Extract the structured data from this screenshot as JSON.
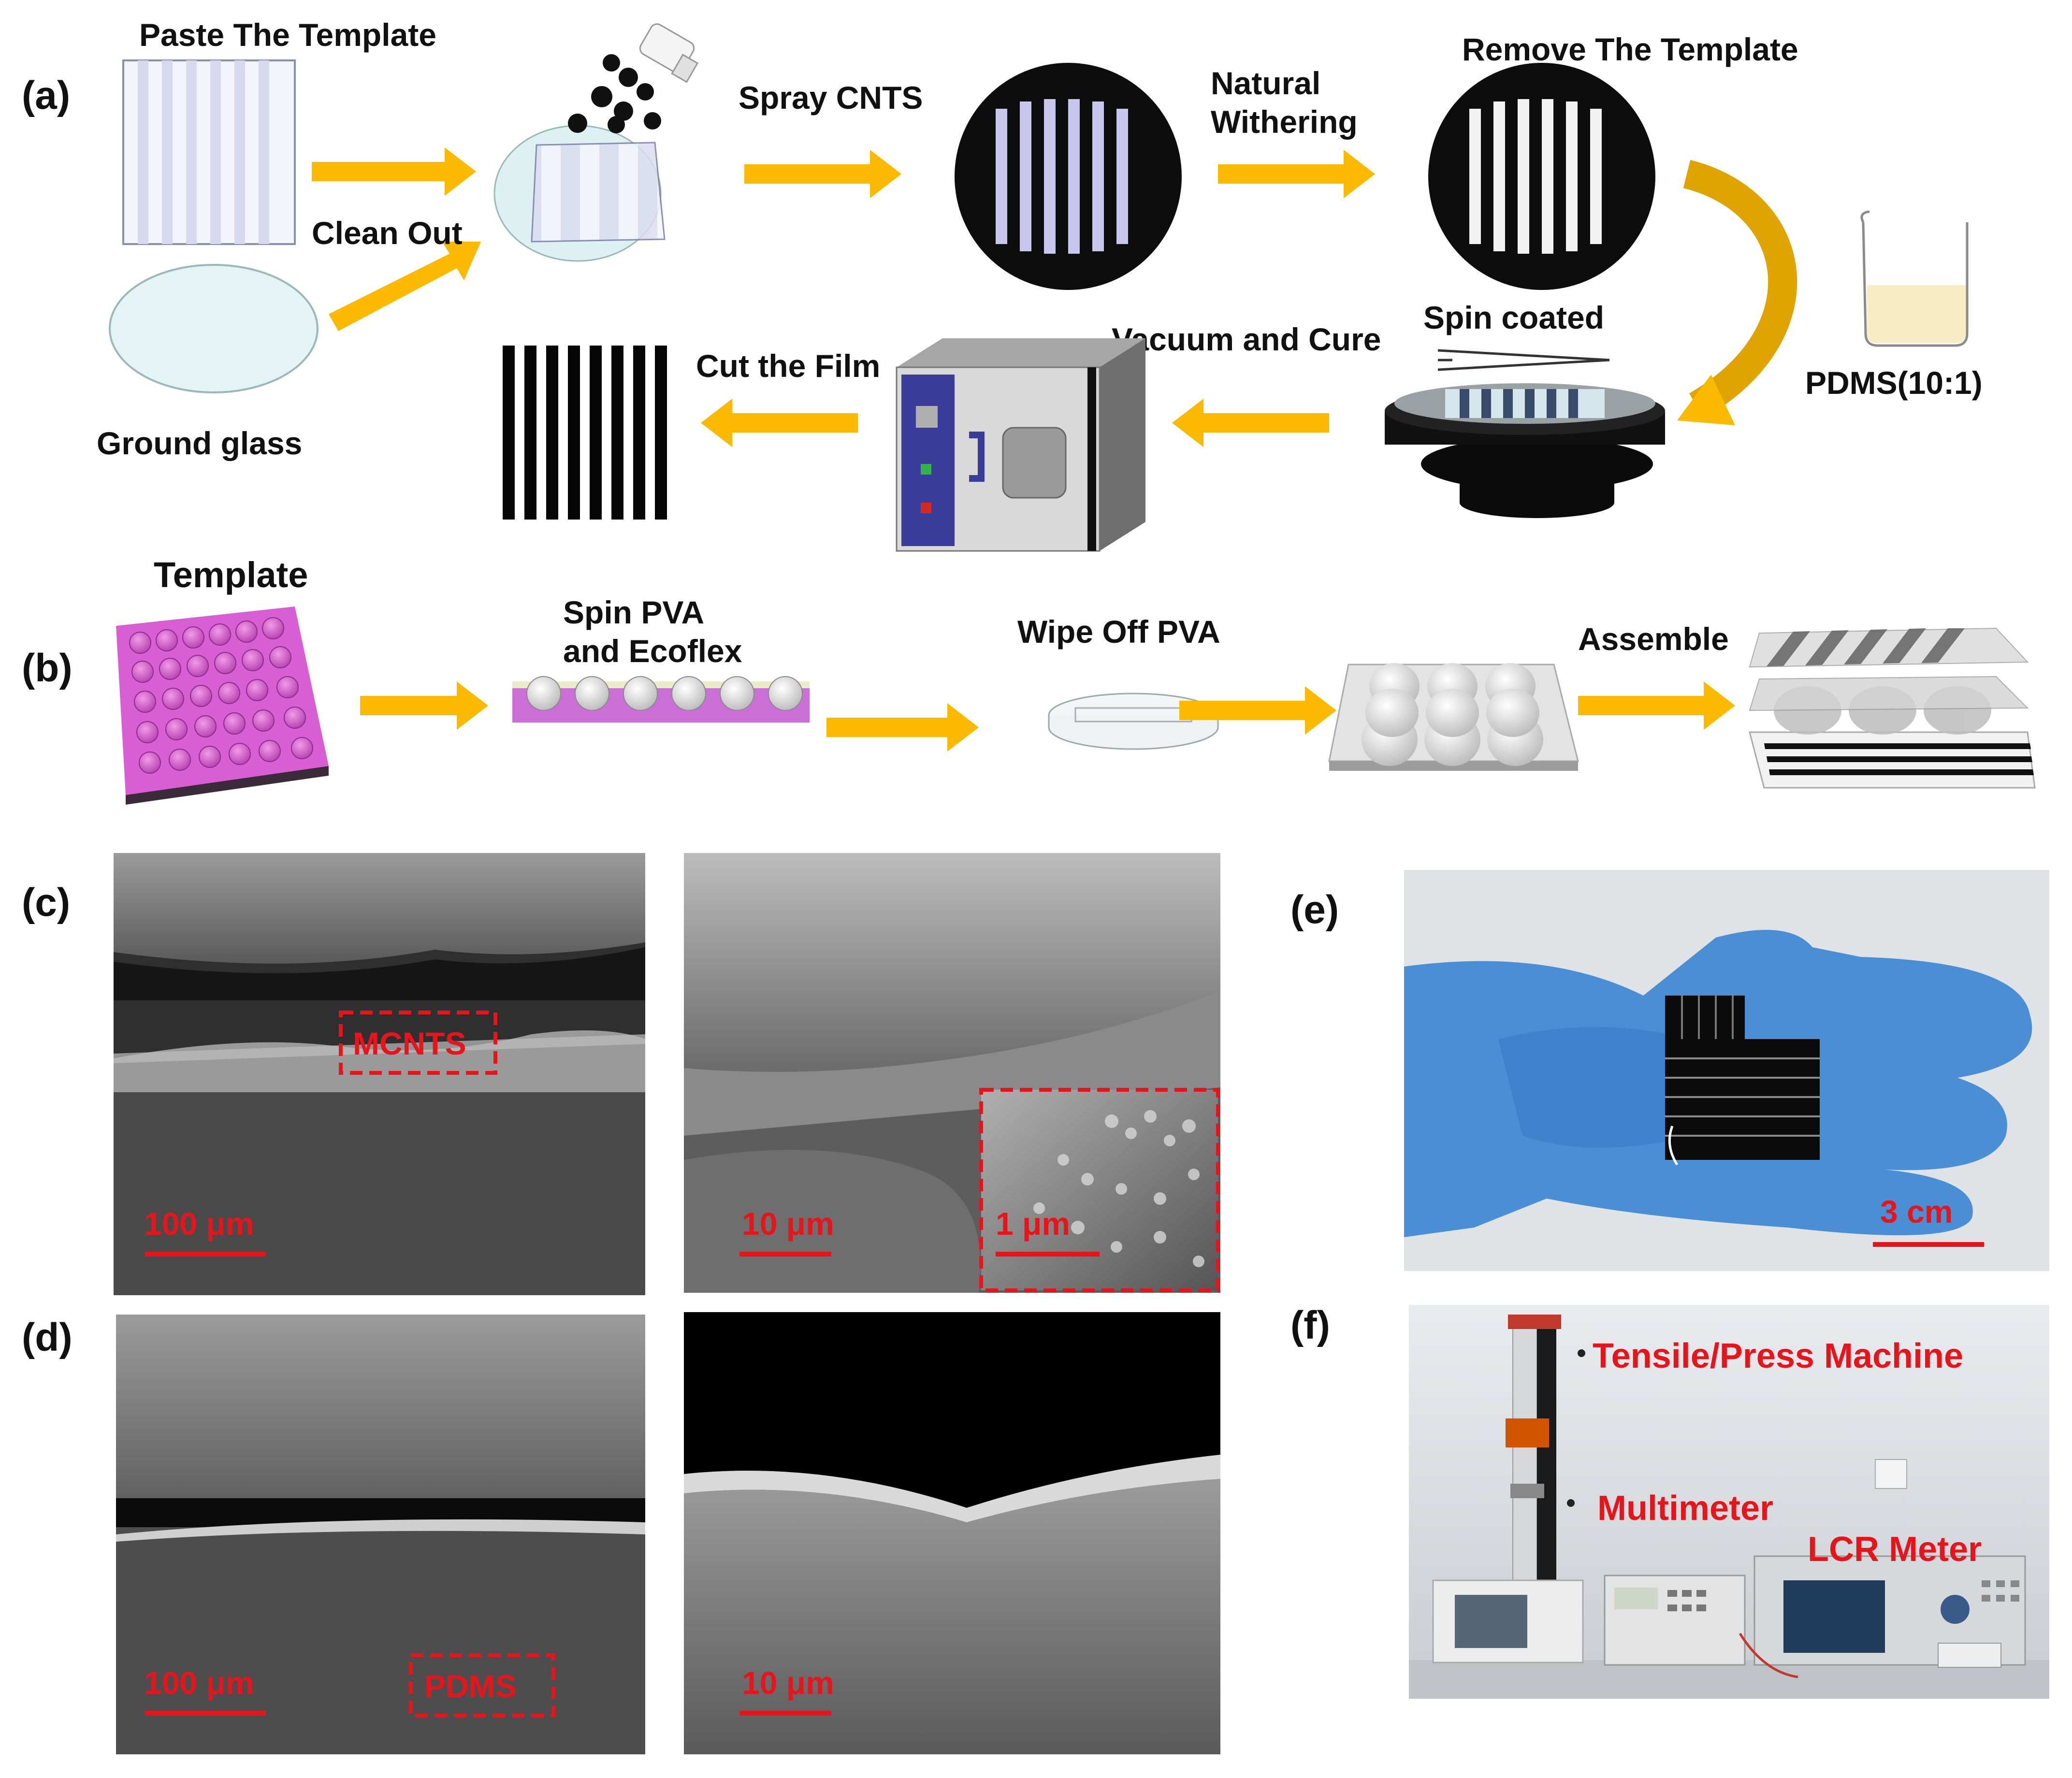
{
  "colors": {
    "arrow": "#fbb900",
    "red_annotation": "#e8141b",
    "black": "#000000",
    "glove": "#4a8fd6"
  },
  "panel_a": {
    "tag": "(a)",
    "paste_template": "Paste The Template",
    "clean_out": "Clean Out",
    "ground_glass": "Ground glass",
    "spray_cnts": "Spray  CNTS",
    "natural": "Natural",
    "withering": "Withering",
    "remove_template": "Remove The Template",
    "pdms": "PDMS(10:1)",
    "spin_coated": "Spin coated",
    "vacuum_cure": "Vacuum and Cure",
    "cut_film": "Cut the Film"
  },
  "panel_b": {
    "tag": "(b)",
    "template": "Template",
    "spin_pva_1": "Spin PVA",
    "spin_pva_2": "and Ecoflex",
    "wipe_off": "Wipe Off PVA",
    "assemble": "Assemble"
  },
  "panel_c": {
    "tag": "(c)",
    "scale_left": "100 μm",
    "mcnts": "MCNTS",
    "scale_right": "10 μm",
    "scale_inset": "1 μm"
  },
  "panel_d": {
    "tag": "(d)",
    "scale_left": "100 μm",
    "pdms": "PDMS",
    "scale_right": "10 μm"
  },
  "panel_e": {
    "tag": "(e)",
    "scale": "3 cm"
  },
  "panel_f": {
    "tag": "(f)",
    "tensile": "Tensile/Press Machine",
    "multimeter": "Multimeter",
    "lcr": "LCR Meter"
  }
}
